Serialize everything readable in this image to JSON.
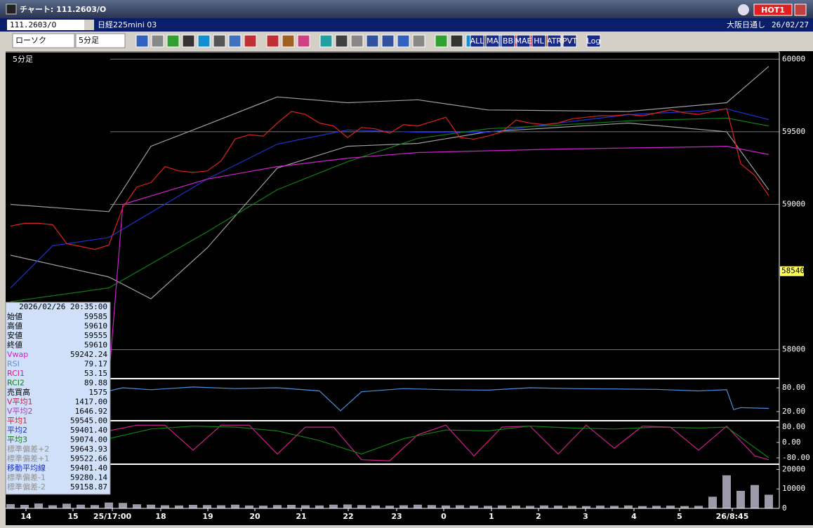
{
  "window": {
    "title": "チャート: 111.2603/O",
    "hot": "HOT1"
  },
  "toolbar": {
    "symbol": "111.2603/O",
    "name": "日経225mini 03",
    "session": "大阪日通し",
    "date": "26/02/27",
    "chart_type": "ローソク",
    "interval": "5分足",
    "buttons": [
      "ALL",
      "MA",
      "BB",
      "MAE",
      "HL",
      "ATR",
      "PVT",
      "Log"
    ]
  },
  "info_panel": {
    "time": "2026/02/26  20:35:00",
    "rows": [
      {
        "label": "始値",
        "value": "59585",
        "color": "#000000"
      },
      {
        "label": "高値",
        "value": "59610",
        "color": "#000000"
      },
      {
        "label": "安値",
        "value": "59555",
        "color": "#000000"
      },
      {
        "label": "終値",
        "value": "59610",
        "color": "#000000"
      },
      {
        "label": "Vwap",
        "value": "59242.24",
        "color": "#d020d0"
      },
      {
        "label": "RSI",
        "value": "79.17",
        "color": "#5a90e0"
      },
      {
        "label": "RCI1",
        "value": "53.15",
        "color": "#d0208a"
      },
      {
        "label": "RCI2",
        "value": "89.88",
        "color": "#108010"
      },
      {
        "label": "売買高",
        "value": "1575",
        "color": "#000000"
      },
      {
        "label": "V平均1",
        "value": "1417.00",
        "color": "#c02050"
      },
      {
        "label": "V平均2",
        "value": "1646.92",
        "color": "#a040b0"
      },
      {
        "label": "平均1",
        "value": "59545.00",
        "color": "#e02020"
      },
      {
        "label": "平均2",
        "value": "59401.40",
        "color": "#2030d0"
      },
      {
        "label": "平均3",
        "value": "59074.00",
        "color": "#108010"
      },
      {
        "label": "標準偏差+2",
        "value": "59643.93",
        "color": "#909090"
      },
      {
        "label": "標準偏差+1",
        "value": "59522.66",
        "color": "#909090"
      },
      {
        "label": "移動平均線",
        "value": "59401.40",
        "color": "#2030d0"
      },
      {
        "label": "標準偏差-1",
        "value": "59280.14",
        "color": "#909090"
      },
      {
        "label": "標準偏差-2",
        "value": "59158.87",
        "color": "#909090"
      }
    ]
  },
  "chart_data": [
    {
      "type": "line",
      "subtitle": "5分足",
      "ylim": [
        57800,
        60050
      ],
      "yticks": [
        58000,
        59000,
        59500,
        60000
      ],
      "grid": true,
      "last_price": 58540,
      "xticks": [
        {
          "value": 1.1,
          "label": "14"
        },
        {
          "value": 4.45,
          "label": "15"
        },
        {
          "value": 7.25,
          "label": "25/17:00"
        },
        {
          "value": 10.7,
          "label": "18"
        },
        {
          "value": 14.05,
          "label": "19"
        },
        {
          "value": 17.4,
          "label": "20"
        },
        {
          "value": 20.7,
          "label": "21"
        },
        {
          "value": 24.05,
          "label": "22"
        },
        {
          "value": 27.5,
          "label": "23"
        },
        {
          "value": 30.85,
          "label": "0"
        },
        {
          "value": 34.25,
          "label": "1"
        },
        {
          "value": 37.6,
          "label": "2"
        },
        {
          "value": 40.95,
          "label": "3"
        },
        {
          "value": 44.4,
          "label": "4"
        },
        {
          "value": 47.65,
          "label": "5"
        },
        {
          "value": 51.4,
          "label": "26/8:45"
        }
      ],
      "series": [
        {
          "color": "#a0a0a0",
          "x": [
            0,
            7,
            10,
            14,
            19,
            24,
            29,
            34,
            44,
            51,
            54
          ],
          "values": [
            59000,
            58950,
            59400,
            59550,
            59740,
            59700,
            59720,
            59650,
            59640,
            59700,
            59950
          ]
        },
        {
          "color": "#a0a0a0",
          "x": [
            0,
            7,
            10,
            14,
            19,
            24,
            29,
            34,
            44,
            51,
            54
          ],
          "values": [
            58650,
            58500,
            58350,
            58700,
            59250,
            59400,
            59420,
            59500,
            59560,
            59500,
            59100
          ]
        },
        {
          "color": "#2030d0",
          "x": [
            0,
            3,
            7,
            14,
            19,
            24,
            29,
            34,
            39,
            44,
            49,
            51,
            54
          ],
          "values": [
            58425,
            58715,
            58772,
            59174,
            59415,
            59512,
            59497,
            59497,
            59560,
            59618,
            59642,
            59657,
            59584
          ]
        },
        {
          "color": "#108010",
          "x": [
            0,
            7,
            14,
            19,
            24,
            29,
            34,
            39,
            44,
            49,
            51,
            54
          ],
          "values": [
            58330,
            58425,
            58811,
            59101,
            59294,
            59454,
            59521,
            59546,
            59575,
            59589,
            59594,
            59540
          ]
        },
        {
          "color": "#d020d0",
          "x": [
            7,
            8,
            14,
            19,
            24,
            29,
            39,
            49,
            51,
            54
          ],
          "values": [
            57800,
            59000,
            59174,
            59260,
            59318,
            59357,
            59381,
            59396,
            59400,
            59343
          ]
        },
        {
          "color": "#e02020",
          "values": [
            58850,
            58870,
            58870,
            58860,
            58730,
            58710,
            58690,
            58720,
            58980,
            59120,
            59150,
            59260,
            59230,
            59220,
            59230,
            59300,
            59450,
            59480,
            59470,
            59560,
            59640,
            59620,
            59560,
            59540,
            59460,
            59530,
            59520,
            59490,
            59550,
            59540,
            59570,
            59600,
            59460,
            59450,
            59470,
            59500,
            59580,
            59560,
            59550,
            59560,
            59590,
            59600,
            59610,
            59610,
            59620,
            59610,
            59630,
            59650,
            59630,
            59620,
            59640,
            59660,
            59280,
            59200,
            59060
          ]
        }
      ]
    },
    {
      "type": "line",
      "ylim": [
        -3,
        103
      ],
      "yticks": [
        {
          "value": 20,
          "label": "20.00"
        },
        {
          "value": 80,
          "label": "80.00"
        }
      ],
      "series": [
        {
          "color": "#4a90e0",
          "x": [
            7,
            8,
            10,
            13,
            16,
            19,
            22,
            23.5,
            25,
            28,
            31,
            34,
            37,
            40,
            43,
            46,
            49,
            51,
            51.5,
            52,
            54
          ],
          "values": [
            72,
            80,
            75,
            82,
            78,
            80,
            72,
            22,
            70,
            78,
            75,
            74,
            80,
            78,
            77,
            76,
            72,
            75,
            25,
            30,
            28
          ]
        }
      ]
    },
    {
      "type": "line",
      "ylim": [
        -113,
        113
      ],
      "yticks": [
        {
          "value": -80,
          "label": "-80.00"
        },
        {
          "value": 0,
          "label": "0.00"
        },
        {
          "value": 80,
          "label": "80.00"
        }
      ],
      "series": [
        {
          "color": "#d0208a",
          "x": [
            7,
            9,
            11,
            13,
            15,
            17,
            19,
            21,
            23,
            25,
            27,
            29,
            31,
            33,
            35,
            37,
            39,
            41,
            43,
            45,
            47,
            49,
            51,
            53,
            54
          ],
          "values": [
            60,
            90,
            90,
            -40,
            90,
            90,
            -60,
            80,
            80,
            -90,
            -95,
            40,
            90,
            -70,
            80,
            85,
            -60,
            90,
            -30,
            85,
            80,
            -40,
            85,
            -70,
            -90
          ]
        },
        {
          "color": "#108010",
          "x": [
            7,
            10,
            13,
            16,
            19,
            22,
            25,
            28,
            31,
            34,
            37,
            40,
            43,
            46,
            49,
            51,
            54
          ],
          "values": [
            20,
            70,
            85,
            80,
            60,
            10,
            -60,
            20,
            65,
            60,
            85,
            75,
            70,
            80,
            75,
            80,
            -80
          ]
        }
      ]
    },
    {
      "type": "bar",
      "ylim": [
        0,
        22700
      ],
      "yticks": [
        0,
        10000,
        20000
      ],
      "color": "#9a9aa8",
      "values": [
        2200,
        1800,
        2500,
        1600,
        2400,
        1900,
        1700,
        3000,
        2800,
        2100,
        1900,
        1600,
        1500,
        1800,
        1700,
        1600,
        1900,
        1500,
        1400,
        1700,
        1800,
        1600,
        1500,
        1900,
        2000,
        1700,
        1500,
        1400,
        1600,
        1900,
        1700,
        1500,
        1600,
        1400,
        1300,
        1500,
        1400,
        1300,
        1500,
        1400,
        1300,
        1200,
        1400,
        1300,
        1500,
        1200,
        1300,
        1400,
        1200,
        1300,
        6000,
        17000,
        9000,
        12000,
        7000
      ]
    }
  ]
}
